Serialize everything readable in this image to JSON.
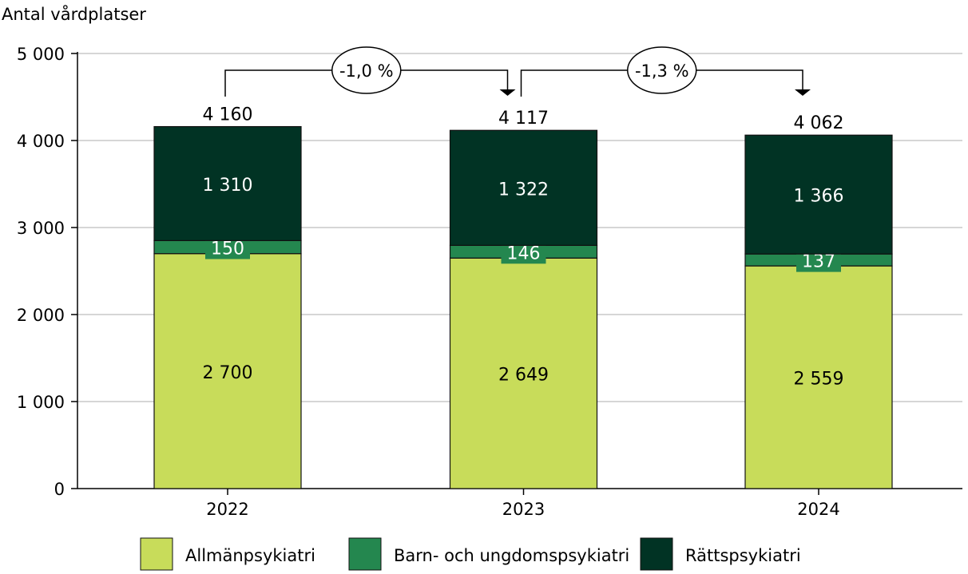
{
  "chart_data": {
    "type": "bar",
    "stacked": true,
    "ylabel": "Antal vårdplatser",
    "ylim": [
      0,
      5000
    ],
    "yticks": [
      0,
      1000,
      2000,
      3000,
      4000,
      5000
    ],
    "ytick_labels": [
      "0",
      "1 000",
      "2 000",
      "3 000",
      "4 000",
      "5 000"
    ],
    "grid": true,
    "legend_position": "bottom",
    "categories": [
      "2022",
      "2023",
      "2024"
    ],
    "series": [
      {
        "name": "Allmänpsykiatri",
        "values": [
          2700,
          2649,
          2559
        ],
        "labels": [
          "2 700",
          "2 649",
          "2 559"
        ],
        "color": "#c8dc5a"
      },
      {
        "name": "Barn- och ungdomspsykiatri",
        "values": [
          150,
          146,
          137
        ],
        "labels": [
          "150",
          "146",
          "137"
        ],
        "color": "#24874f"
      },
      {
        "name": "Rättspsykiatri",
        "values": [
          1310,
          1322,
          1366
        ],
        "labels": [
          "1 310",
          "1 322",
          "1 366"
        ],
        "color": "#013324"
      }
    ],
    "totals": [
      4160,
      4117,
      4062
    ],
    "total_labels": [
      "4 160",
      "4 117",
      "4 062"
    ],
    "annotations": [
      {
        "from": "2022",
        "to": "2023",
        "text": "-1,0 %"
      },
      {
        "from": "2023",
        "to": "2024",
        "text": "-1,3 %"
      }
    ]
  }
}
